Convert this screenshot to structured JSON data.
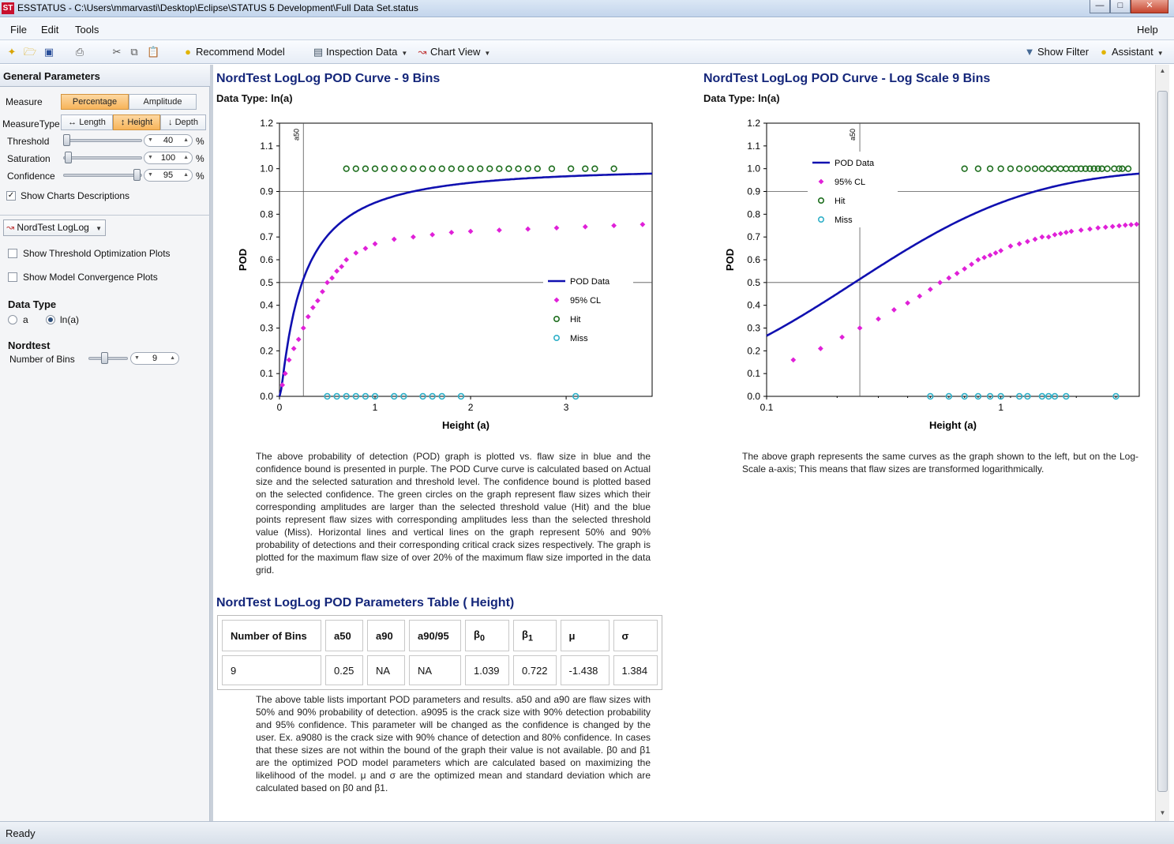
{
  "window": {
    "app_icon": "ST",
    "title": "ESSTATUS - C:\\Users\\mmarvasti\\Desktop\\Eclipse\\STATUS 5 Development\\Full Data Set.status"
  },
  "menu": {
    "file": "File",
    "edit": "Edit",
    "tools": "Tools",
    "help": "Help"
  },
  "toolbar": {
    "recommend_model": "Recommend Model",
    "inspection_data": "Inspection Data",
    "chart_view": "Chart View",
    "show_filter": "Show Filter",
    "assistant": "Assistant"
  },
  "sidebar": {
    "header": "General Parameters",
    "measure_label": "Measure",
    "measure_options": [
      "Percentage",
      "Amplitude"
    ],
    "measure_selected": "Percentage",
    "measure_type_label": "MeasureType",
    "measure_types": [
      "Length",
      "Height",
      "Depth"
    ],
    "measure_type_selected": "Height",
    "threshold_label": "Threshold",
    "threshold_value": "40",
    "threshold_fraction": 0.0,
    "saturation_label": "Saturation",
    "saturation_value": "100",
    "saturation_fraction": 0.0,
    "confidence_label": "Confidence",
    "confidence_value": "95",
    "confidence_fraction": 0.95,
    "percent_unit": "%",
    "show_charts_descriptions": "Show Charts Descriptions",
    "show_charts_descriptions_checked": true,
    "model": "NordTest LogLog",
    "show_threshold_optimization": "Show Threshold Optimization Plots",
    "show_model_convergence": "Show Model Convergence Plots",
    "data_type_heading": "Data Type",
    "data_type_options": [
      "a",
      "ln(a)"
    ],
    "data_type_selected": "ln(a)",
    "nordtest_heading": "Nordtest",
    "bins_label": "Number of Bins",
    "bins_value": "9",
    "bins_fraction": 0.4
  },
  "main": {
    "chart1_title": "NordTest LogLog POD Curve - 9 Bins",
    "chart1_datatype": "Data Type: ln(a)",
    "chart2_title": "NordTest LogLog POD Curve - Log Scale 9 Bins",
    "chart2_datatype": "Data Type: ln(a)",
    "chart1_desc": "The above probability of detection (POD) graph is plotted vs. flaw size in blue and the confidence bound is presented in purple. The POD Curve curve is calculated based on Actual size and the selected saturation and threshold level. The confidence bound is plotted based on the selected confidence. The green circles on the graph represent flaw sizes which their corresponding amplitudes are larger than the selected threshold value (Hit) and the blue points represent flaw sizes with corresponding amplitudes less than the selected threshold value (Miss). Horizontal lines and vertical lines on the graph represent 50% and 90% probability of detections and their corresponding critical crack sizes respectively. The graph is plotted for the maximum flaw size of over 20% of the maximum flaw size imported in the data grid.",
    "chart2_desc": "The above graph represents the same curves as the graph shown to the left, but on the Log-Scale a-axis; This means that flaw sizes are transformed logarithmically.",
    "table_title": "NordTest LogLog POD Parameters Table ( Height)",
    "table_headers": [
      "Number of Bins",
      "a50",
      "a90",
      "a90/95",
      "β0",
      "β1",
      "μ",
      "σ"
    ],
    "table_values": [
      "9",
      "0.25",
      "NA",
      "NA",
      "1.039",
      "0.722",
      "-1.438",
      "1.384"
    ],
    "table_desc_1": "The above table lists important POD parameters and results. a50 and a90 are flaw sizes with 50% and 90% probability of detection. a9095 is the crack size with 90% detection probability and 95% confidence. This parameter will be changed as the confidence is changed by the user. Ex. a9080 is the crack size with 90% chance of detection and 80% confidence. In cases that these sizes are not within the bound of the graph their value is not available.",
    "table_desc_beta0": "β0",
    "table_desc_and": "and",
    "table_desc_beta1": "β1",
    "table_desc_2": "are the optimized POD model parameters which are calculated based on maximizing the likelihood of the model. μ and σ are the optimized mean and standard deviation which are calculated based on",
    "table_desc_end_b0": "β0",
    "table_desc_end_and": "and",
    "table_desc_end_b1": "β1."
  },
  "chart_data": [
    {
      "type": "line",
      "title": "NordTest LogLog POD Curve - 9 Bins",
      "xlabel": "Height (a)",
      "ylabel": "POD",
      "xlim": [
        0,
        3.9
      ],
      "ylim": [
        0,
        1.2
      ],
      "x_ticks": [
        0,
        1,
        2,
        3
      ],
      "y_ticks": [
        0.0,
        0.1,
        0.2,
        0.3,
        0.4,
        0.5,
        0.6,
        0.7,
        0.8,
        0.9,
        1.0,
        1.1,
        1.2
      ],
      "reference_lines": {
        "pod50": 0.5,
        "pod90": 0.9,
        "a50": 0.25,
        "a50_label": "a50"
      },
      "legend": [
        "POD Data",
        "95% CL",
        "Hit",
        "Miss"
      ],
      "legend_position": "right-middle",
      "series": [
        {
          "name": "POD Data",
          "color": "#1010b0",
          "model": {
            "mu": -1.438,
            "sigma": 1.384,
            "log_x": true
          }
        },
        {
          "name": "95% CL",
          "color": "#e020d8",
          "x": [
            0.03,
            0.06,
            0.1,
            0.15,
            0.2,
            0.25,
            0.3,
            0.35,
            0.4,
            0.45,
            0.5,
            0.55,
            0.6,
            0.65,
            0.7,
            0.8,
            0.9,
            1.0,
            1.2,
            1.4,
            1.6,
            1.8,
            2.0,
            2.3,
            2.6,
            2.9,
            3.2,
            3.5,
            3.8
          ],
          "y": [
            0.05,
            0.1,
            0.16,
            0.21,
            0.25,
            0.3,
            0.35,
            0.39,
            0.42,
            0.46,
            0.5,
            0.52,
            0.55,
            0.57,
            0.6,
            0.63,
            0.65,
            0.67,
            0.69,
            0.7,
            0.71,
            0.72,
            0.725,
            0.73,
            0.735,
            0.74,
            0.745,
            0.75,
            0.755
          ]
        },
        {
          "name": "Hit",
          "color": "#1e6e1e",
          "x": [
            0.7,
            0.8,
            0.9,
            1.0,
            1.1,
            1.2,
            1.3,
            1.4,
            1.5,
            1.6,
            1.7,
            1.8,
            1.9,
            2.0,
            2.1,
            2.2,
            2.3,
            2.4,
            2.5,
            2.6,
            2.7,
            2.85,
            3.05,
            3.2,
            3.3,
            3.5
          ],
          "y": [
            1,
            1,
            1,
            1,
            1,
            1,
            1,
            1,
            1,
            1,
            1,
            1,
            1,
            1,
            1,
            1,
            1,
            1,
            1,
            1,
            1,
            1,
            1,
            1,
            1,
            1
          ]
        },
        {
          "name": "Miss",
          "color": "#30b0c8",
          "x": [
            0.5,
            0.6,
            0.7,
            0.8,
            0.9,
            1.0,
            1.2,
            1.3,
            1.5,
            1.6,
            1.7,
            1.9,
            3.1
          ],
          "y": [
            0,
            0,
            0,
            0,
            0,
            0,
            0,
            0,
            0,
            0,
            0,
            0,
            0
          ]
        }
      ]
    },
    {
      "type": "line",
      "title": "NordTest LogLog POD Curve - Log Scale 9 Bins",
      "xlabel": "Height (a)",
      "ylabel": "POD",
      "x_scale": "log",
      "xlim": [
        0.1,
        3.9
      ],
      "ylim": [
        0,
        1.2
      ],
      "x_ticks": [
        0.1,
        1
      ],
      "y_ticks": [
        0.0,
        0.1,
        0.2,
        0.3,
        0.4,
        0.5,
        0.6,
        0.7,
        0.8,
        0.9,
        1.0,
        1.1,
        1.2
      ],
      "reference_lines": {
        "pod50": 0.5,
        "pod90": 0.9,
        "a50": 0.25,
        "a50_label": "a50"
      },
      "legend": [
        "POD Data",
        "95% CL",
        "Hit",
        "Miss"
      ],
      "legend_position": "top-left",
      "series": [
        {
          "name": "POD Data",
          "color": "#1010b0",
          "model": {
            "mu": -1.438,
            "sigma": 1.384,
            "log_x": true
          }
        },
        {
          "name": "95% CL",
          "color": "#e020d8",
          "x": [
            0.13,
            0.17,
            0.21,
            0.25,
            0.3,
            0.35,
            0.4,
            0.45,
            0.5,
            0.55,
            0.6,
            0.65,
            0.7,
            0.75,
            0.8,
            0.85,
            0.9,
            0.95,
            1.0,
            1.1,
            1.2,
            1.3,
            1.4,
            1.5,
            1.6,
            1.7,
            1.8,
            1.9,
            2.0,
            2.2,
            2.4,
            2.6,
            2.8,
            3.0,
            3.2,
            3.4,
            3.6,
            3.8
          ],
          "y": [
            0.16,
            0.21,
            0.26,
            0.3,
            0.34,
            0.38,
            0.41,
            0.44,
            0.47,
            0.5,
            0.52,
            0.54,
            0.56,
            0.58,
            0.6,
            0.61,
            0.62,
            0.63,
            0.64,
            0.66,
            0.67,
            0.68,
            0.69,
            0.7,
            0.7,
            0.71,
            0.715,
            0.72,
            0.725,
            0.73,
            0.735,
            0.74,
            0.743,
            0.746,
            0.749,
            0.752,
            0.754,
            0.756
          ]
        },
        {
          "name": "Hit",
          "color": "#1e6e1e",
          "x": [
            0.7,
            0.8,
            0.9,
            1.0,
            1.1,
            1.2,
            1.3,
            1.4,
            1.5,
            1.6,
            1.7,
            1.8,
            1.9,
            2.0,
            2.1,
            2.2,
            2.3,
            2.4,
            2.5,
            2.6,
            2.7,
            2.85,
            3.05,
            3.2,
            3.3,
            3.5
          ],
          "y": [
            1,
            1,
            1,
            1,
            1,
            1,
            1,
            1,
            1,
            1,
            1,
            1,
            1,
            1,
            1,
            1,
            1,
            1,
            1,
            1,
            1,
            1,
            1,
            1,
            1,
            1
          ]
        },
        {
          "name": "Miss",
          "color": "#30b0c8",
          "x": [
            0.5,
            0.6,
            0.7,
            0.8,
            0.9,
            1.0,
            1.2,
            1.3,
            1.5,
            1.6,
            1.7,
            1.9,
            3.1
          ],
          "y": [
            0,
            0,
            0,
            0,
            0,
            0,
            0,
            0,
            0,
            0,
            0,
            0,
            0
          ]
        }
      ]
    }
  ],
  "status": {
    "text": "Ready"
  }
}
